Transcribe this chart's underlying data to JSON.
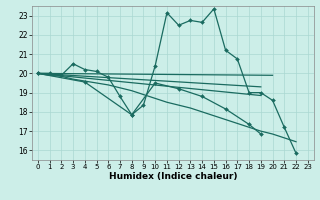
{
  "xlabel": "Humidex (Indice chaleur)",
  "bg_color": "#cceee8",
  "grid_color": "#aad8d2",
  "line_color": "#1a6b60",
  "xlim": [
    -0.5,
    23.5
  ],
  "ylim": [
    15.5,
    23.5
  ],
  "yticks": [
    16,
    17,
    18,
    19,
    20,
    21,
    22,
    23
  ],
  "xticks": [
    0,
    1,
    2,
    3,
    4,
    5,
    6,
    7,
    8,
    9,
    10,
    11,
    12,
    13,
    14,
    15,
    16,
    17,
    18,
    19,
    20,
    21,
    22,
    23
  ],
  "lines": [
    {
      "x": [
        0,
        1,
        2,
        3,
        4,
        5,
        6,
        7,
        8,
        9,
        10,
        11,
        12,
        13,
        14,
        15,
        16,
        17,
        18,
        19,
        20,
        21,
        22
      ],
      "y": [
        20.0,
        20.0,
        19.9,
        20.5,
        20.2,
        20.1,
        19.8,
        18.8,
        17.85,
        18.35,
        20.4,
        23.15,
        22.5,
        22.75,
        22.65,
        23.35,
        21.2,
        20.75,
        19.0,
        19.0,
        18.6,
        17.2,
        15.85
      ],
      "marker": true,
      "lw": 0.9
    },
    {
      "x": [
        0,
        20
      ],
      "y": [
        20.0,
        19.9
      ],
      "marker": false,
      "lw": 0.9
    },
    {
      "x": [
        0,
        19
      ],
      "y": [
        20.0,
        19.3
      ],
      "marker": false,
      "lw": 0.9
    },
    {
      "x": [
        0,
        19
      ],
      "y": [
        20.0,
        18.85
      ],
      "marker": false,
      "lw": 0.9
    },
    {
      "x": [
        0,
        1,
        2,
        3,
        4,
        5,
        6,
        7,
        8,
        9,
        10,
        11,
        12,
        13,
        14,
        15,
        16,
        17,
        18,
        19,
        20,
        21,
        22,
        23
      ],
      "y": [
        20.0,
        19.9,
        19.85,
        19.7,
        19.6,
        19.5,
        19.4,
        19.25,
        19.1,
        18.9,
        18.7,
        18.5,
        18.35,
        18.2,
        18.0,
        17.8,
        17.6,
        17.4,
        17.2,
        17.0,
        16.85,
        16.65,
        16.45,
        null
      ],
      "marker": false,
      "lw": 0.9
    },
    {
      "x": [
        0,
        4,
        8,
        10,
        12,
        14,
        16,
        18,
        19,
        20,
        21,
        22,
        23
      ],
      "y": [
        20.0,
        19.55,
        17.85,
        19.5,
        19.2,
        18.8,
        18.15,
        17.35,
        16.85,
        null,
        null,
        null,
        null
      ],
      "marker": true,
      "lw": 0.9
    }
  ]
}
